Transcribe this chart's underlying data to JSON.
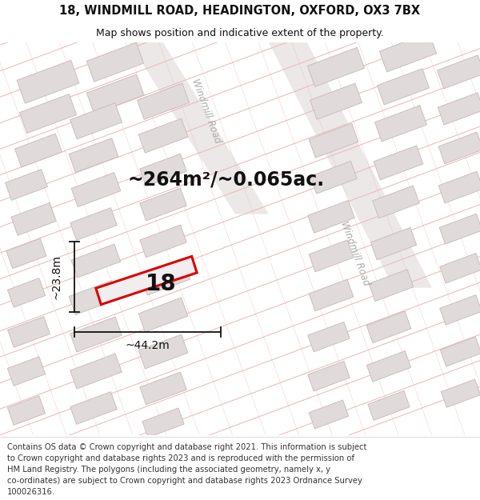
{
  "title_line1": "18, WINDMILL ROAD, HEADINGTON, OXFORD, OX3 7BX",
  "title_line2": "Map shows position and indicative extent of the property.",
  "footer_text": "Contains OS data © Crown copyright and database right 2021. This information is subject to Crown copyright and database rights 2023 and is reproduced with the permission of HM Land Registry. The polygons (including the associated geometry, namely x, y co-ordinates) are subject to Crown copyright and database rights 2023 Ordnance Survey 100026316.",
  "area_label": "~264m²/~0.065ac.",
  "number_label": "18",
  "width_label": "~44.2m",
  "height_label": "~23.8m",
  "map_bg": "#f7f4f2",
  "road_line_color": "#e8b8b8",
  "building_fill": "#e0dada",
  "building_edge": "#c8b8b8",
  "road_band_color": "#ede8e8",
  "plot_edge_color": "#dd0000",
  "dim_line_color": "#111111",
  "title_fontsize": 10.5,
  "subtitle_fontsize": 9,
  "area_fontsize": 17,
  "number_fontsize": 20,
  "dim_fontsize": 10,
  "road_label_fontsize": 8.5,
  "footer_fontsize": 7.2
}
